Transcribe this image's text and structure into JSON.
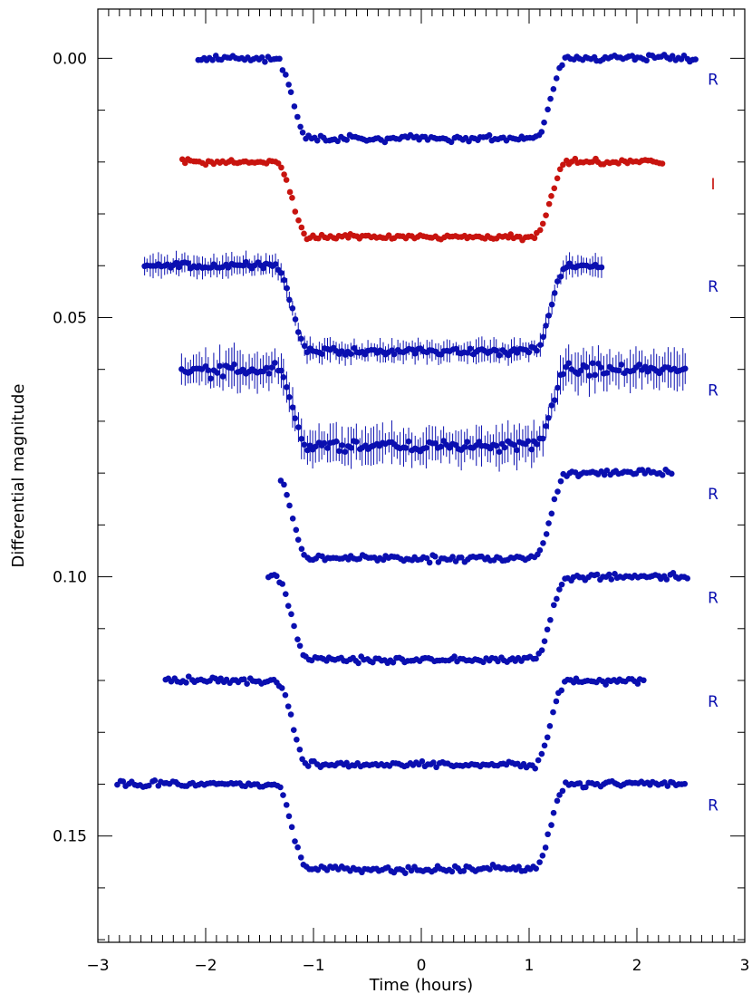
{
  "chart_data": {
    "type": "scatter",
    "title": "",
    "xlabel": "Time (hours)",
    "ylabel": "Differential magnitude",
    "xlim": [
      -3,
      3
    ],
    "ylim": [
      0.0,
      0.1
    ],
    "y_inverted": true,
    "y_display_range": [
      -0.0095,
      0.1705
    ],
    "x_ticks": [
      -3,
      -2,
      -1,
      0,
      1,
      2,
      3
    ],
    "x_tick_labels": [
      "−3",
      "−2",
      "−1",
      "0",
      "1",
      "2",
      "3"
    ],
    "y_ticks": [
      0.0,
      0.05,
      0.1,
      0.15
    ],
    "y_tick_labels": [
      "0.00",
      "0.05",
      "0.10",
      "0.15"
    ],
    "grid": false,
    "colors": {
      "R": "#0a0fb0",
      "I": "#c8140f"
    },
    "series": [
      {
        "name": "R",
        "filter": "R",
        "color": "#0a0fb0",
        "x_start": -2.07,
        "x_end": 2.57,
        "baseline": 0.0,
        "depth": 0.0155,
        "noise": 0.0006,
        "error_bars": false
      },
      {
        "name": "I",
        "filter": "I",
        "color": "#c8140f",
        "x_start": -2.22,
        "x_end": 2.25,
        "baseline": 0.02,
        "depth": 0.0145,
        "noise": 0.0005,
        "error_bars": false
      },
      {
        "name": "R",
        "filter": "R",
        "color": "#0a0fb0",
        "x_start": -2.57,
        "x_end": 1.68,
        "baseline": 0.04,
        "depth": 0.0165,
        "noise": 0.0007,
        "error_bars": true
      },
      {
        "name": "R",
        "filter": "R",
        "color": "#0a0fb0",
        "x_start": -2.22,
        "x_end": 2.47,
        "baseline": 0.06,
        "depth": 0.0148,
        "noise": 0.0012,
        "error_bars": true
      },
      {
        "name": "R",
        "filter": "R",
        "color": "#0a0fb0",
        "x_start": -1.3,
        "x_end": 2.32,
        "baseline": 0.08,
        "depth": 0.0165,
        "noise": 0.0006,
        "error_bars": false
      },
      {
        "name": "R",
        "filter": "R",
        "color": "#0a0fb0",
        "x_start": -1.42,
        "x_end": 2.47,
        "baseline": 0.1,
        "depth": 0.016,
        "noise": 0.0006,
        "error_bars": false
      },
      {
        "name": "R",
        "filter": "R",
        "color": "#0a0fb0",
        "x_start": -2.37,
        "x_end": 2.07,
        "baseline": 0.12,
        "depth": 0.0163,
        "noise": 0.0006,
        "error_bars": false
      },
      {
        "name": "R",
        "filter": "R",
        "color": "#0a0fb0",
        "x_start": -2.82,
        "x_end": 2.47,
        "baseline": 0.14,
        "depth": 0.0165,
        "noise": 0.0006,
        "error_bars": false
      }
    ],
    "transit": {
      "t1": 1.35,
      "t2": 1.05
    }
  }
}
